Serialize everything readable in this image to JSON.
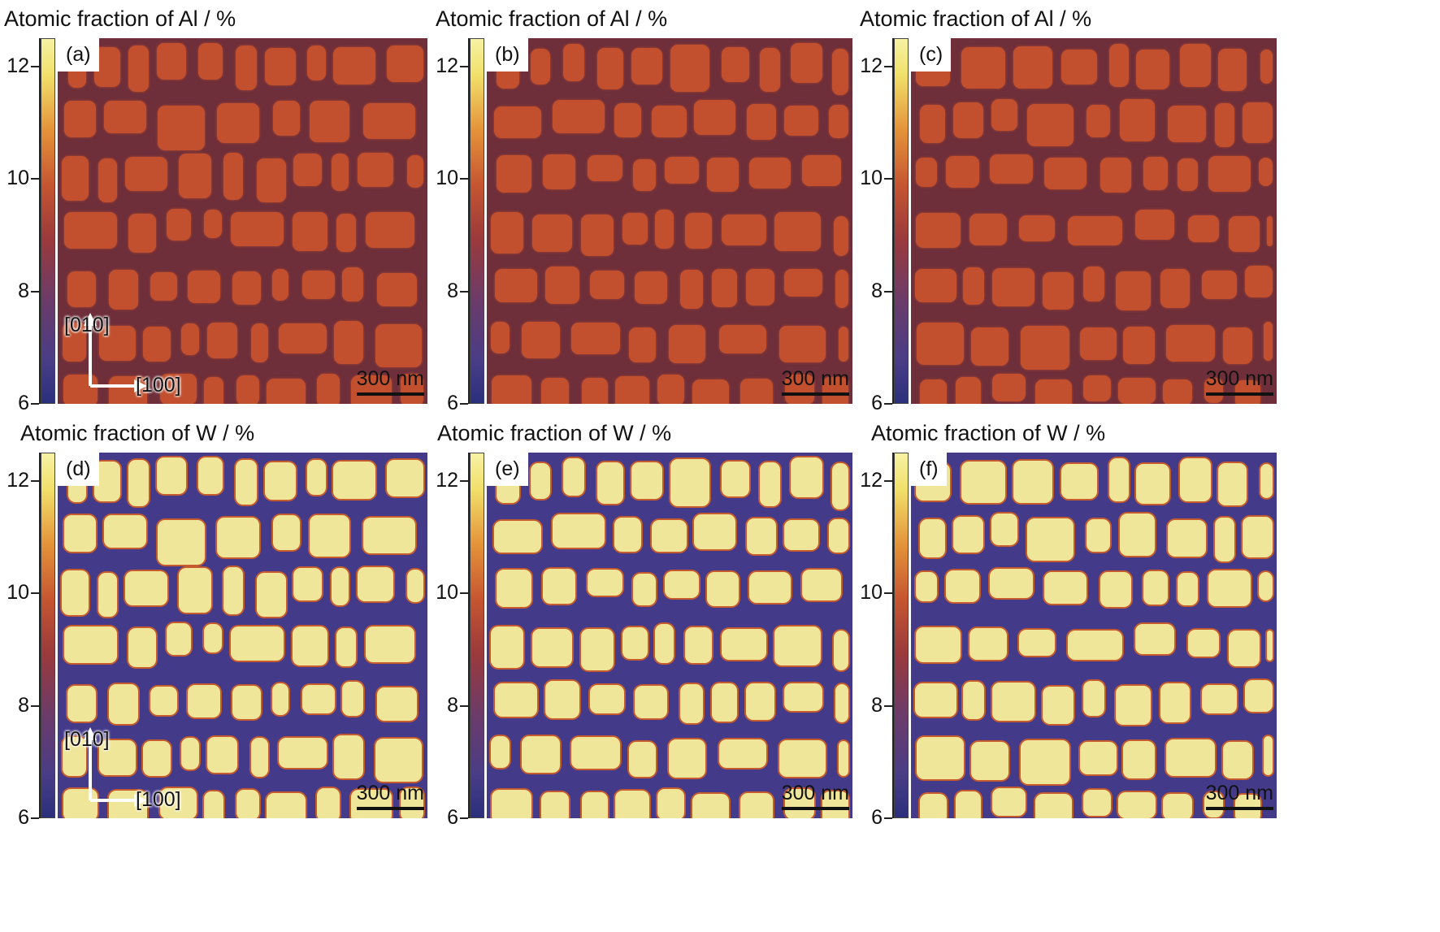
{
  "titles": {
    "al": "Atomic fraction of Al / %",
    "w": "Atomic fraction of W / %"
  },
  "colorbar": {
    "ticks": [
      "12",
      "10",
      "8",
      "6"
    ],
    "tick_values": [
      12,
      10,
      8,
      6
    ],
    "range": [
      6,
      12.5
    ]
  },
  "panels": [
    {
      "label": "(a)",
      "element": "Al"
    },
    {
      "label": "(b)",
      "element": "Al"
    },
    {
      "label": "(c)",
      "element": "Al"
    },
    {
      "label": "(d)",
      "element": "W"
    },
    {
      "label": "(e)",
      "element": "W"
    },
    {
      "label": "(f)",
      "element": "W"
    }
  ],
  "scalebar": "300 nm",
  "orientation": {
    "vertical": "[010]",
    "horizontal": "[100]"
  },
  "colors": {
    "al_matrix": "#6e2e3a",
    "al_precipitate": "#c2502e",
    "w_matrix": "#433a8a",
    "w_precipitate": "#f0e69a"
  }
}
